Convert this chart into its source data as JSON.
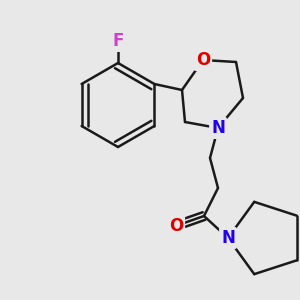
{
  "background_color": "#e8e8e8",
  "bond_color": "#1a1a1a",
  "bond_width": 1.8,
  "atom_colors": {
    "F": "#cc44cc",
    "O": "#dd0000",
    "N": "#2200ee",
    "C": "#1a1a1a"
  },
  "font_size_atoms": 11,
  "figsize": [
    3.0,
    3.0
  ],
  "dpi": 100
}
